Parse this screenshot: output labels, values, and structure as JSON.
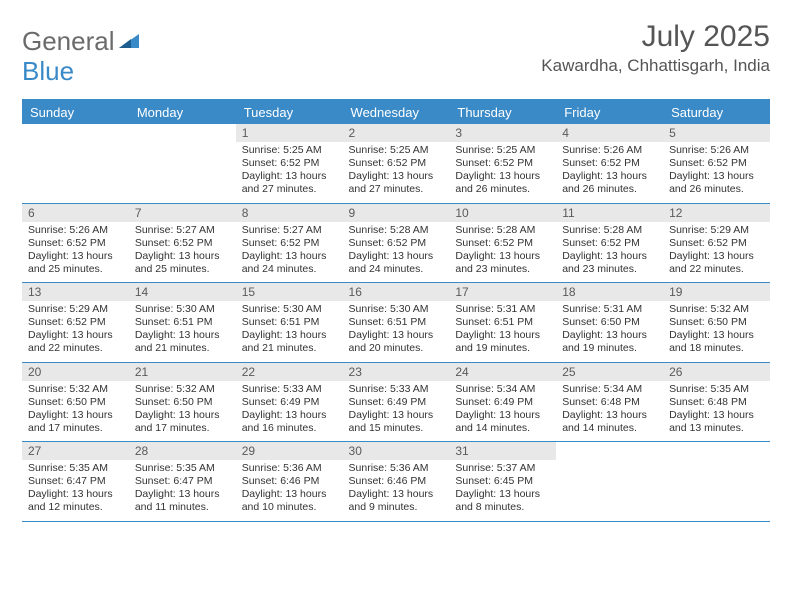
{
  "logo": {
    "text1": "General",
    "text2": "Blue"
  },
  "title": "July 2025",
  "location": "Kawardha, Chhattisgarh, India",
  "colors": {
    "header_bg": "#3a8ac8",
    "header_text": "#ffffff",
    "daynum_bg": "#e8e8e8",
    "text": "#333333",
    "logo_gray": "#6b6b6b",
    "logo_blue": "#3a8ac8"
  },
  "day_names": [
    "Sunday",
    "Monday",
    "Tuesday",
    "Wednesday",
    "Thursday",
    "Friday",
    "Saturday"
  ],
  "weeks": [
    [
      {
        "n": "",
        "empty": true
      },
      {
        "n": "",
        "empty": true
      },
      {
        "n": "1",
        "sr": "5:25 AM",
        "ss": "6:52 PM",
        "dl": "13 hours and 27 minutes."
      },
      {
        "n": "2",
        "sr": "5:25 AM",
        "ss": "6:52 PM",
        "dl": "13 hours and 27 minutes."
      },
      {
        "n": "3",
        "sr": "5:25 AM",
        "ss": "6:52 PM",
        "dl": "13 hours and 26 minutes."
      },
      {
        "n": "4",
        "sr": "5:26 AM",
        "ss": "6:52 PM",
        "dl": "13 hours and 26 minutes."
      },
      {
        "n": "5",
        "sr": "5:26 AM",
        "ss": "6:52 PM",
        "dl": "13 hours and 26 minutes."
      }
    ],
    [
      {
        "n": "6",
        "sr": "5:26 AM",
        "ss": "6:52 PM",
        "dl": "13 hours and 25 minutes."
      },
      {
        "n": "7",
        "sr": "5:27 AM",
        "ss": "6:52 PM",
        "dl": "13 hours and 25 minutes."
      },
      {
        "n": "8",
        "sr": "5:27 AM",
        "ss": "6:52 PM",
        "dl": "13 hours and 24 minutes."
      },
      {
        "n": "9",
        "sr": "5:28 AM",
        "ss": "6:52 PM",
        "dl": "13 hours and 24 minutes."
      },
      {
        "n": "10",
        "sr": "5:28 AM",
        "ss": "6:52 PM",
        "dl": "13 hours and 23 minutes."
      },
      {
        "n": "11",
        "sr": "5:28 AM",
        "ss": "6:52 PM",
        "dl": "13 hours and 23 minutes."
      },
      {
        "n": "12",
        "sr": "5:29 AM",
        "ss": "6:52 PM",
        "dl": "13 hours and 22 minutes."
      }
    ],
    [
      {
        "n": "13",
        "sr": "5:29 AM",
        "ss": "6:52 PM",
        "dl": "13 hours and 22 minutes."
      },
      {
        "n": "14",
        "sr": "5:30 AM",
        "ss": "6:51 PM",
        "dl": "13 hours and 21 minutes."
      },
      {
        "n": "15",
        "sr": "5:30 AM",
        "ss": "6:51 PM",
        "dl": "13 hours and 21 minutes."
      },
      {
        "n": "16",
        "sr": "5:30 AM",
        "ss": "6:51 PM",
        "dl": "13 hours and 20 minutes."
      },
      {
        "n": "17",
        "sr": "5:31 AM",
        "ss": "6:51 PM",
        "dl": "13 hours and 19 minutes."
      },
      {
        "n": "18",
        "sr": "5:31 AM",
        "ss": "6:50 PM",
        "dl": "13 hours and 19 minutes."
      },
      {
        "n": "19",
        "sr": "5:32 AM",
        "ss": "6:50 PM",
        "dl": "13 hours and 18 minutes."
      }
    ],
    [
      {
        "n": "20",
        "sr": "5:32 AM",
        "ss": "6:50 PM",
        "dl": "13 hours and 17 minutes."
      },
      {
        "n": "21",
        "sr": "5:32 AM",
        "ss": "6:50 PM",
        "dl": "13 hours and 17 minutes."
      },
      {
        "n": "22",
        "sr": "5:33 AM",
        "ss": "6:49 PM",
        "dl": "13 hours and 16 minutes."
      },
      {
        "n": "23",
        "sr": "5:33 AM",
        "ss": "6:49 PM",
        "dl": "13 hours and 15 minutes."
      },
      {
        "n": "24",
        "sr": "5:34 AM",
        "ss": "6:49 PM",
        "dl": "13 hours and 14 minutes."
      },
      {
        "n": "25",
        "sr": "5:34 AM",
        "ss": "6:48 PM",
        "dl": "13 hours and 14 minutes."
      },
      {
        "n": "26",
        "sr": "5:35 AM",
        "ss": "6:48 PM",
        "dl": "13 hours and 13 minutes."
      }
    ],
    [
      {
        "n": "27",
        "sr": "5:35 AM",
        "ss": "6:47 PM",
        "dl": "13 hours and 12 minutes."
      },
      {
        "n": "28",
        "sr": "5:35 AM",
        "ss": "6:47 PM",
        "dl": "13 hours and 11 minutes."
      },
      {
        "n": "29",
        "sr": "5:36 AM",
        "ss": "6:46 PM",
        "dl": "13 hours and 10 minutes."
      },
      {
        "n": "30",
        "sr": "5:36 AM",
        "ss": "6:46 PM",
        "dl": "13 hours and 9 minutes."
      },
      {
        "n": "31",
        "sr": "5:37 AM",
        "ss": "6:45 PM",
        "dl": "13 hours and 8 minutes."
      },
      {
        "n": "",
        "empty": true
      },
      {
        "n": "",
        "empty": true
      }
    ]
  ],
  "labels": {
    "sunrise": "Sunrise:",
    "sunset": "Sunset:",
    "daylight": "Daylight:"
  }
}
